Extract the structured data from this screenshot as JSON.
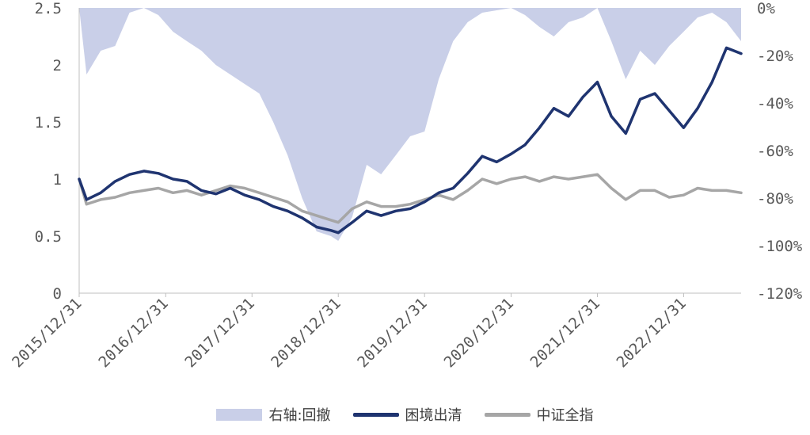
{
  "chart_data": {
    "type": "line",
    "title": "",
    "x_tick_labels": [
      "2015/12/31",
      "2016/12/31",
      "2017/12/31",
      "2018/12/31",
      "2019/12/31",
      "2020/12/31",
      "2021/12/31",
      "2022/12/31"
    ],
    "xlim": [
      "2015-12-31",
      "2023-08-31"
    ],
    "left_axis": {
      "ylim": [
        0,
        2.5
      ],
      "ticks": [
        "0",
        "0.5",
        "1",
        "1.5",
        "2",
        "2.5"
      ]
    },
    "right_axis": {
      "ylim": [
        -120,
        0
      ],
      "ticks": [
        "0%",
        "-20%",
        "-40%",
        "-60%",
        "-80%",
        "-100%",
        "-120%"
      ]
    },
    "grid": false,
    "legend_position": "bottom",
    "series": [
      {
        "name": "右轴:回撤",
        "kind": "area",
        "axis": "right",
        "color": "#c9cfe8",
        "x": [
          "2015-12-31",
          "2016-01-31",
          "2016-03-31",
          "2016-05-31",
          "2016-07-31",
          "2016-09-30",
          "2016-11-30",
          "2017-01-31",
          "2017-03-31",
          "2017-05-31",
          "2017-07-31",
          "2017-09-30",
          "2017-11-30",
          "2018-01-31",
          "2018-03-31",
          "2018-05-31",
          "2018-07-31",
          "2018-09-30",
          "2018-11-30",
          "2018-12-31",
          "2019-02-28",
          "2019-04-30",
          "2019-06-30",
          "2019-08-31",
          "2019-10-31",
          "2019-12-31",
          "2020-02-29",
          "2020-04-30",
          "2020-06-30",
          "2020-08-31",
          "2020-10-31",
          "2020-12-31",
          "2021-02-28",
          "2021-04-30",
          "2021-06-30",
          "2021-08-31",
          "2021-10-31",
          "2021-12-31",
          "2022-02-28",
          "2022-04-30",
          "2022-06-30",
          "2022-08-31",
          "2022-10-31",
          "2022-12-31",
          "2023-02-28",
          "2023-04-30",
          "2023-06-30",
          "2023-08-31"
        ],
        "values": [
          0,
          -28,
          -18,
          -16,
          -2,
          0,
          -3,
          -10,
          -14,
          -18,
          -24,
          -28,
          -32,
          -36,
          -48,
          -62,
          -80,
          -94,
          -96,
          -98,
          -88,
          -66,
          -70,
          -62,
          -54,
          -52,
          -30,
          -14,
          -6,
          -2,
          -1,
          0,
          -3,
          -8,
          -12,
          -6,
          -4,
          0,
          -14,
          -30,
          -18,
          -24,
          -16,
          -10,
          -4,
          -2,
          -6,
          -14
        ]
      },
      {
        "name": "困境出清",
        "kind": "line",
        "axis": "left",
        "color": "#1f3470",
        "x": [
          "2015-12-31",
          "2016-01-31",
          "2016-03-31",
          "2016-05-31",
          "2016-07-31",
          "2016-09-30",
          "2016-11-30",
          "2017-01-31",
          "2017-03-31",
          "2017-05-31",
          "2017-07-31",
          "2017-09-30",
          "2017-11-30",
          "2018-01-31",
          "2018-03-31",
          "2018-05-31",
          "2018-07-31",
          "2018-09-30",
          "2018-11-30",
          "2018-12-31",
          "2019-02-28",
          "2019-04-30",
          "2019-06-30",
          "2019-08-31",
          "2019-10-31",
          "2019-12-31",
          "2020-02-29",
          "2020-04-30",
          "2020-06-30",
          "2020-08-31",
          "2020-10-31",
          "2020-12-31",
          "2021-02-28",
          "2021-04-30",
          "2021-06-30",
          "2021-08-31",
          "2021-10-31",
          "2021-12-31",
          "2022-02-28",
          "2022-04-30",
          "2022-06-30",
          "2022-08-31",
          "2022-10-31",
          "2022-12-31",
          "2023-02-28",
          "2023-04-30",
          "2023-06-30",
          "2023-08-31"
        ],
        "values": [
          1.0,
          0.82,
          0.88,
          0.98,
          1.04,
          1.07,
          1.05,
          1.0,
          0.98,
          0.9,
          0.87,
          0.92,
          0.86,
          0.82,
          0.76,
          0.72,
          0.66,
          0.58,
          0.55,
          0.53,
          0.62,
          0.72,
          0.68,
          0.72,
          0.74,
          0.8,
          0.88,
          0.92,
          1.05,
          1.2,
          1.15,
          1.22,
          1.3,
          1.45,
          1.62,
          1.55,
          1.72,
          1.85,
          1.55,
          1.4,
          1.7,
          1.75,
          1.6,
          1.45,
          1.62,
          1.85,
          2.15,
          2.1
        ]
      },
      {
        "name": "中证全指",
        "kind": "line",
        "axis": "left",
        "color": "#a6a6a6",
        "x": [
          "2015-12-31",
          "2016-01-31",
          "2016-03-31",
          "2016-05-31",
          "2016-07-31",
          "2016-09-30",
          "2016-11-30",
          "2017-01-31",
          "2017-03-31",
          "2017-05-31",
          "2017-07-31",
          "2017-09-30",
          "2017-11-30",
          "2018-01-31",
          "2018-03-31",
          "2018-05-31",
          "2018-07-31",
          "2018-09-30",
          "2018-11-30",
          "2018-12-31",
          "2019-02-28",
          "2019-04-30",
          "2019-06-30",
          "2019-08-31",
          "2019-10-31",
          "2019-12-31",
          "2020-02-29",
          "2020-04-30",
          "2020-06-30",
          "2020-08-31",
          "2020-10-31",
          "2020-12-31",
          "2021-02-28",
          "2021-04-30",
          "2021-06-30",
          "2021-08-31",
          "2021-10-31",
          "2021-12-31",
          "2022-02-28",
          "2022-04-30",
          "2022-06-30",
          "2022-08-31",
          "2022-10-31",
          "2022-12-31",
          "2023-02-28",
          "2023-04-30",
          "2023-06-30",
          "2023-08-31"
        ],
        "values": [
          1.0,
          0.78,
          0.82,
          0.84,
          0.88,
          0.9,
          0.92,
          0.88,
          0.9,
          0.86,
          0.9,
          0.94,
          0.92,
          0.88,
          0.84,
          0.8,
          0.72,
          0.68,
          0.64,
          0.62,
          0.74,
          0.8,
          0.76,
          0.76,
          0.78,
          0.82,
          0.86,
          0.82,
          0.9,
          1.0,
          0.96,
          1.0,
          1.02,
          0.98,
          1.02,
          1.0,
          1.02,
          1.04,
          0.92,
          0.82,
          0.9,
          0.9,
          0.84,
          0.86,
          0.92,
          0.9,
          0.9,
          0.88
        ]
      }
    ]
  }
}
